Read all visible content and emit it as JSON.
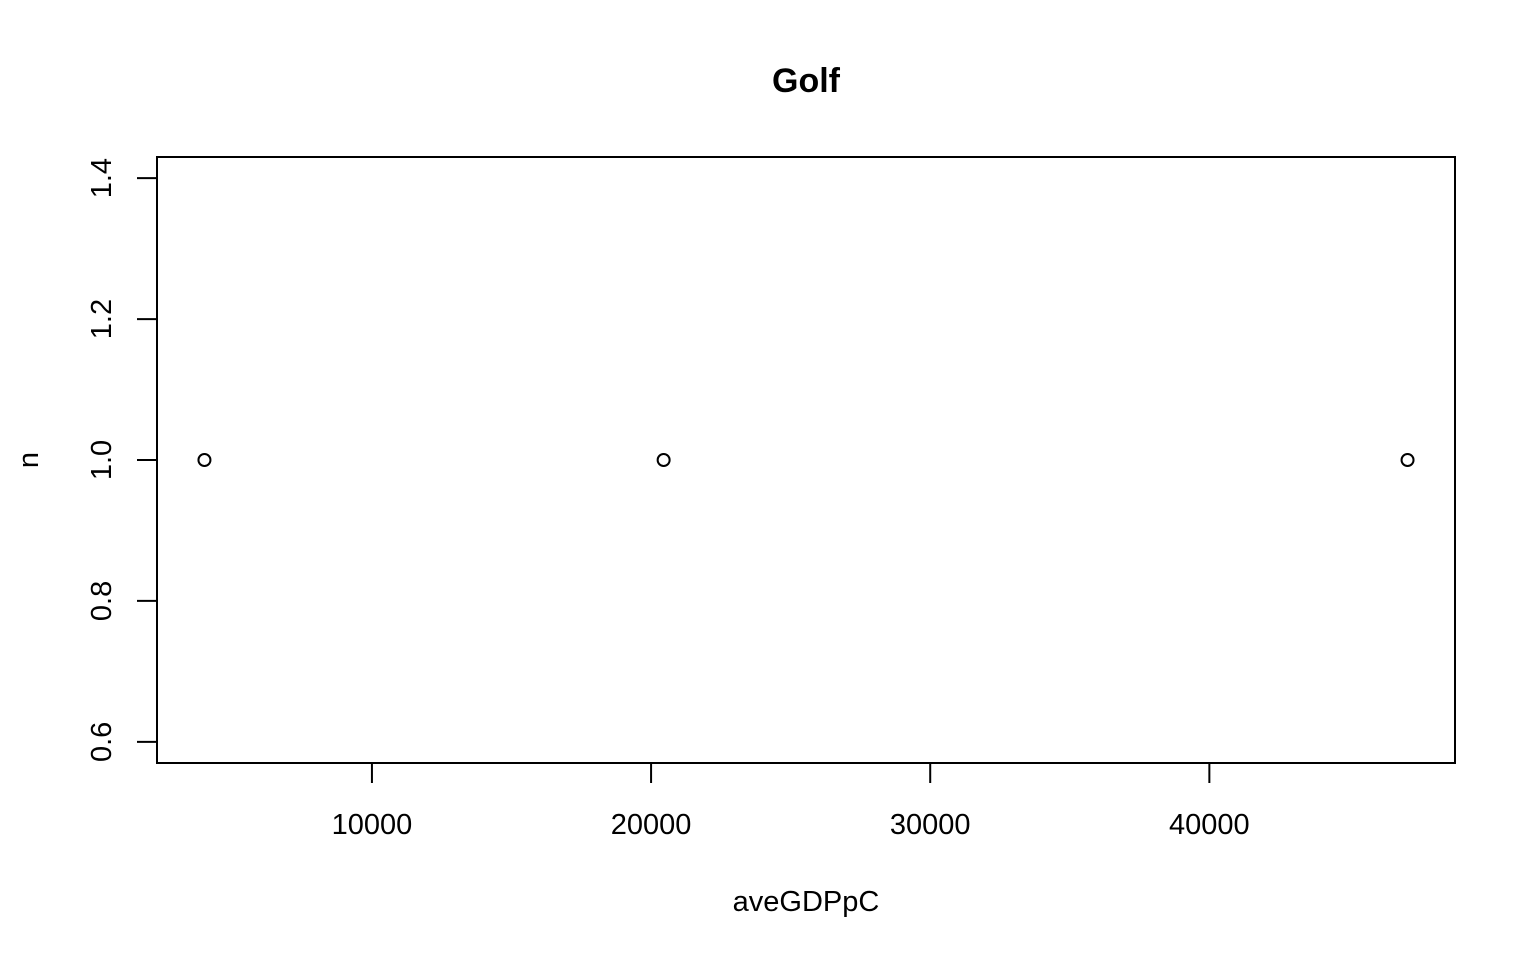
{
  "chart_data": {
    "type": "scatter",
    "title": "Golf",
    "xlabel": "aveGDPpC",
    "ylabel": "n",
    "xlim": [
      2300,
      48800
    ],
    "ylim": [
      0.57,
      1.43
    ],
    "x_ticks": [
      10000,
      20000,
      30000,
      40000
    ],
    "x_tick_labels": [
      "10000",
      "20000",
      "30000",
      "40000"
    ],
    "y_ticks": [
      0.6,
      0.8,
      1.0,
      1.2,
      1.4
    ],
    "y_tick_labels": [
      "0.6",
      "0.8",
      "1.0",
      "1.2",
      "1.4"
    ],
    "grid": false,
    "legend": null,
    "series": [
      {
        "points": [
          {
            "x": 4000,
            "y": 1.0
          },
          {
            "x": 20450,
            "y": 1.0
          },
          {
            "x": 47100,
            "y": 1.0
          }
        ]
      }
    ]
  }
}
